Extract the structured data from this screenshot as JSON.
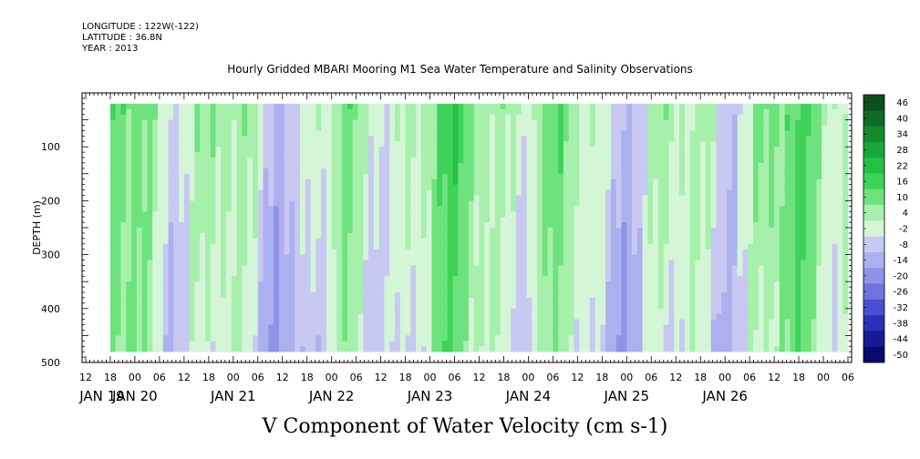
{
  "header": {
    "longitude": "LONGITUDE : 122W(-122)",
    "latitude": "LATITUDE : 36.8N",
    "year": "YEAR : 2013",
    "title": "Hourly Gridded MBARI Mooring M1 Sea Water Temperature and Salinity Observations"
  },
  "chart_data": {
    "type": "heatmap",
    "title": "V Component of Water Velocity (cm s-1)",
    "ylabel": "DEPTH (m)",
    "xlabel": "",
    "ylim": [
      500,
      0
    ],
    "y_ticks": [
      100,
      200,
      300,
      400,
      500
    ],
    "hour_ticks": [
      "12",
      "18",
      "00",
      "06",
      "12",
      "18",
      "00",
      "06",
      "12",
      "18",
      "00",
      "06",
      "12",
      "18",
      "00",
      "06",
      "12",
      "18",
      "00",
      "06",
      "12",
      "18",
      "00",
      "06",
      "12",
      "18",
      "00",
      "06",
      "12",
      "18",
      "00",
      "06"
    ],
    "date_labels": [
      "JAN 19",
      "JAN 20",
      "JAN 21",
      "JAN 22",
      "JAN 23",
      "JAN 24",
      "JAN 25",
      "JAN 26"
    ],
    "x_range_hours": [
      "JAN 19 12",
      "JAN 26 06"
    ],
    "data_x_range_hours": [
      "JAN 19 18",
      "JAN 26 06"
    ],
    "data_depth_range": [
      20,
      480
    ],
    "colorbar": {
      "levels": [
        "46",
        "40",
        "34",
        "28",
        "22",
        "16",
        "10",
        "4",
        "-2",
        "-8",
        "-14",
        "-20",
        "-26",
        "-32",
        "-38",
        "-44",
        "-50"
      ],
      "colors": [
        "#0b4f1c",
        "#0f6b25",
        "#138a2f",
        "#1aa63b",
        "#24c047",
        "#3fd25a",
        "#6ee37d",
        "#a6f0ac",
        "#d4f5d6",
        "#c7c9f2",
        "#adb0ee",
        "#8f93e8",
        "#6f74df",
        "#4a4fcf",
        "#2c30b8",
        "#161a96",
        "#070a6e"
      ]
    }
  }
}
